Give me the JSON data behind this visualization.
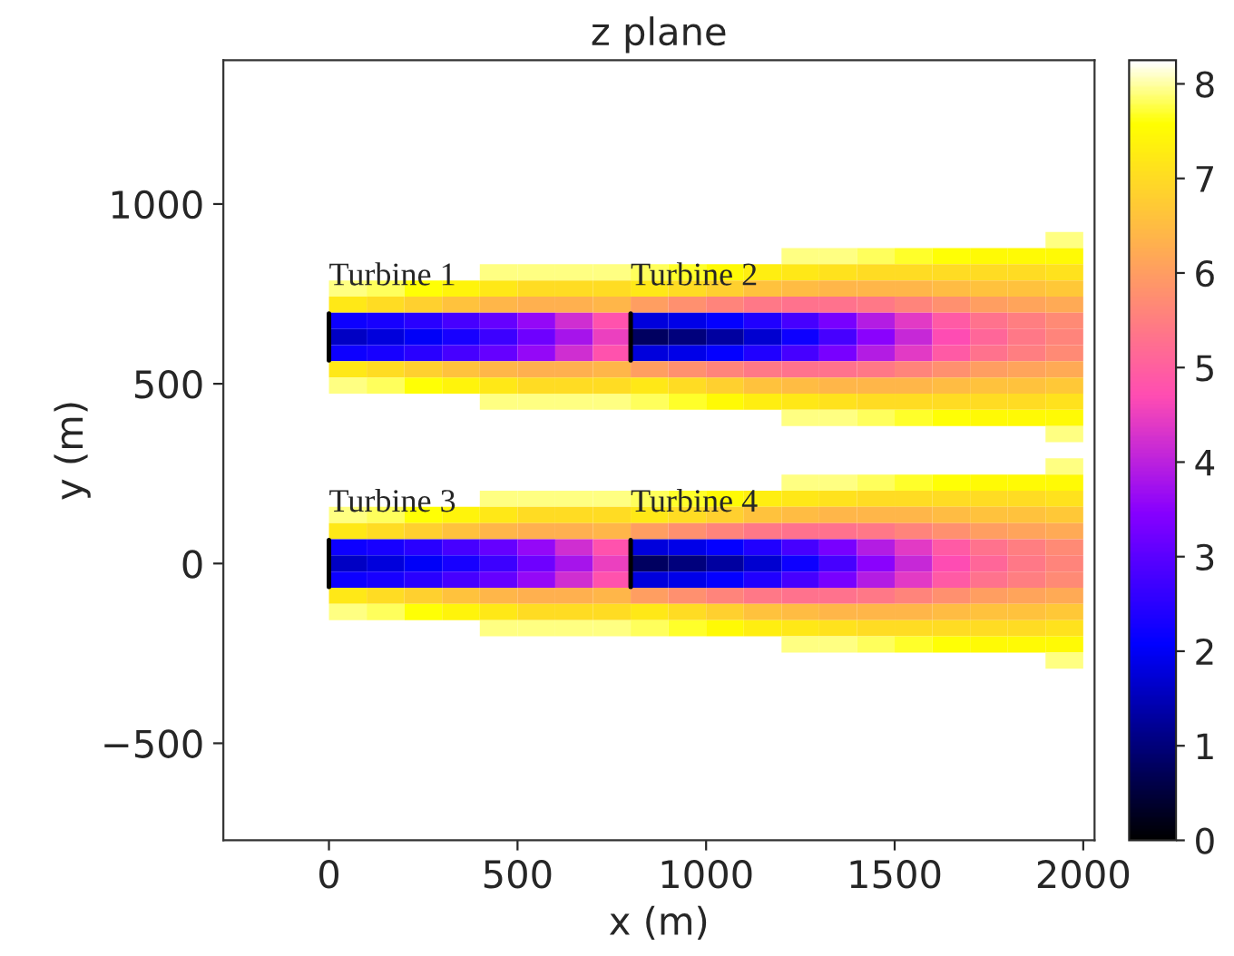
{
  "chart_data": {
    "type": "heatmap",
    "title": "z plane",
    "xlabel": "x (m)",
    "ylabel": "y (m)",
    "x": [
      50,
      150,
      250,
      350,
      450,
      550,
      650,
      750,
      850,
      950,
      1050,
      1150,
      1250,
      1350,
      1450,
      1550,
      1650,
      1750,
      1850,
      1950
    ],
    "y": [
      900,
      855,
      810,
      765,
      720,
      675,
      630,
      585,
      540,
      495,
      450,
      405,
      360,
      270,
      225,
      180,
      135,
      90,
      45,
      0,
      -45,
      -90,
      -135,
      -180,
      -225,
      -270
    ],
    "cells": [
      [
        null,
        null,
        null,
        null,
        null,
        null,
        null,
        null,
        null,
        null,
        null,
        null,
        null,
        null,
        null,
        null,
        null,
        null,
        null,
        7.9
      ],
      [
        null,
        null,
        null,
        null,
        null,
        null,
        null,
        null,
        null,
        null,
        null,
        null,
        7.9,
        7.9,
        7.8,
        7.7,
        7.6,
        7.5,
        7.5,
        7.5
      ],
      [
        null,
        null,
        null,
        null,
        7.9,
        7.9,
        7.9,
        7.9,
        7.8,
        7.7,
        7.5,
        7.3,
        7.2,
        7.1,
        7.0,
        7.0,
        7.0,
        7.0,
        7.0,
        7.1
      ],
      [
        7.9,
        7.8,
        7.6,
        7.4,
        7.2,
        7.0,
        7.0,
        7.0,
        7.2,
        7.0,
        6.8,
        6.6,
        6.5,
        6.4,
        6.4,
        6.4,
        6.5,
        6.6,
        6.6,
        6.7
      ],
      [
        7.2,
        7.0,
        6.8,
        6.6,
        6.4,
        6.3,
        6.3,
        6.4,
        6.0,
        5.8,
        5.6,
        5.4,
        5.3,
        5.3,
        5.4,
        5.6,
        5.8,
        6.0,
        6.1,
        6.2
      ],
      [
        2.2,
        2.3,
        2.5,
        2.8,
        3.1,
        3.6,
        4.2,
        4.8,
        1.8,
        1.9,
        2.1,
        2.4,
        2.8,
        3.3,
        3.9,
        4.4,
        4.9,
        5.3,
        5.5,
        5.7
      ],
      [
        1.6,
        1.8,
        2.0,
        2.3,
        2.7,
        3.2,
        3.8,
        4.5,
        0.8,
        1.0,
        1.3,
        1.7,
        2.2,
        2.8,
        3.5,
        4.1,
        4.7,
        5.1,
        5.4,
        5.6
      ],
      [
        2.2,
        2.3,
        2.5,
        2.8,
        3.1,
        3.6,
        4.2,
        4.8,
        1.8,
        1.9,
        2.1,
        2.4,
        2.8,
        3.3,
        3.9,
        4.4,
        4.9,
        5.3,
        5.5,
        5.7
      ],
      [
        7.2,
        7.0,
        6.8,
        6.6,
        6.4,
        6.3,
        6.3,
        6.4,
        6.0,
        5.8,
        5.6,
        5.4,
        5.3,
        5.3,
        5.4,
        5.6,
        5.8,
        6.0,
        6.1,
        6.2
      ],
      [
        7.9,
        7.8,
        7.6,
        7.4,
        7.2,
        7.0,
        7.0,
        7.0,
        7.2,
        7.0,
        6.8,
        6.6,
        6.5,
        6.4,
        6.4,
        6.4,
        6.5,
        6.6,
        6.6,
        6.7
      ],
      [
        null,
        null,
        null,
        null,
        7.9,
        7.9,
        7.9,
        7.9,
        7.8,
        7.7,
        7.5,
        7.3,
        7.2,
        7.1,
        7.0,
        7.0,
        7.0,
        7.0,
        7.0,
        7.1
      ],
      [
        null,
        null,
        null,
        null,
        null,
        null,
        null,
        null,
        null,
        null,
        null,
        null,
        7.9,
        7.9,
        7.8,
        7.7,
        7.6,
        7.5,
        7.5,
        7.5
      ],
      [
        null,
        null,
        null,
        null,
        null,
        null,
        null,
        null,
        null,
        null,
        null,
        null,
        null,
        null,
        null,
        null,
        null,
        null,
        null,
        7.9
      ],
      [
        null,
        null,
        null,
        null,
        null,
        null,
        null,
        null,
        null,
        null,
        null,
        null,
        null,
        null,
        null,
        null,
        null,
        null,
        null,
        7.9
      ],
      [
        null,
        null,
        null,
        null,
        null,
        null,
        null,
        null,
        null,
        null,
        null,
        null,
        7.9,
        7.9,
        7.8,
        7.7,
        7.6,
        7.5,
        7.5,
        7.5
      ],
      [
        null,
        null,
        null,
        null,
        7.9,
        7.9,
        7.9,
        7.9,
        7.8,
        7.7,
        7.5,
        7.3,
        7.2,
        7.1,
        7.0,
        7.0,
        7.0,
        7.0,
        7.0,
        7.1
      ],
      [
        7.9,
        7.8,
        7.6,
        7.4,
        7.2,
        7.0,
        7.0,
        7.0,
        7.2,
        7.0,
        6.8,
        6.6,
        6.5,
        6.4,
        6.4,
        6.4,
        6.5,
        6.6,
        6.6,
        6.7
      ],
      [
        7.2,
        7.0,
        6.8,
        6.6,
        6.4,
        6.3,
        6.3,
        6.4,
        6.0,
        5.8,
        5.6,
        5.4,
        5.3,
        5.3,
        5.4,
        5.6,
        5.8,
        6.0,
        6.1,
        6.2
      ],
      [
        2.2,
        2.3,
        2.5,
        2.8,
        3.1,
        3.6,
        4.2,
        4.8,
        1.8,
        1.9,
        2.1,
        2.4,
        2.8,
        3.3,
        3.9,
        4.4,
        4.9,
        5.3,
        5.5,
        5.7
      ],
      [
        1.6,
        1.8,
        2.0,
        2.3,
        2.7,
        3.2,
        3.8,
        4.5,
        0.8,
        1.0,
        1.3,
        1.7,
        2.2,
        2.8,
        3.5,
        4.1,
        4.7,
        5.1,
        5.4,
        5.6
      ],
      [
        2.2,
        2.3,
        2.5,
        2.8,
        3.1,
        3.6,
        4.2,
        4.8,
        1.8,
        1.9,
        2.1,
        2.4,
        2.8,
        3.3,
        3.9,
        4.4,
        4.9,
        5.3,
        5.5,
        5.7
      ],
      [
        7.2,
        7.0,
        6.8,
        6.6,
        6.4,
        6.3,
        6.3,
        6.4,
        6.0,
        5.8,
        5.6,
        5.4,
        5.3,
        5.3,
        5.4,
        5.6,
        5.8,
        6.0,
        6.1,
        6.2
      ],
      [
        7.9,
        7.8,
        7.6,
        7.4,
        7.2,
        7.0,
        7.0,
        7.0,
        7.2,
        7.0,
        6.8,
        6.6,
        6.5,
        6.4,
        6.4,
        6.4,
        6.5,
        6.6,
        6.6,
        6.7
      ],
      [
        null,
        null,
        null,
        null,
        7.9,
        7.9,
        7.9,
        7.9,
        7.8,
        7.7,
        7.5,
        7.3,
        7.2,
        7.1,
        7.0,
        7.0,
        7.0,
        7.0,
        7.0,
        7.1
      ],
      [
        null,
        null,
        null,
        null,
        null,
        null,
        null,
        null,
        null,
        null,
        null,
        null,
        7.9,
        7.9,
        7.8,
        7.7,
        7.6,
        7.5,
        7.5,
        7.5
      ],
      [
        null,
        null,
        null,
        null,
        null,
        null,
        null,
        null,
        null,
        null,
        null,
        null,
        null,
        null,
        null,
        null,
        null,
        null,
        null,
        7.9
      ]
    ],
    "xlim": [
      -280,
      2030
    ],
    "ylim": [
      -770,
      1400
    ],
    "xticks": [
      0,
      500,
      1000,
      1500,
      2000
    ],
    "yticks": [
      {
        "value": -500,
        "label": "−500"
      },
      0,
      500,
      1000
    ],
    "clim": [
      0,
      8.25
    ],
    "cticks": [
      0,
      1,
      2,
      3,
      4,
      5,
      6,
      7,
      8
    ],
    "grid": false,
    "annotations": [
      "Turbine 1",
      "Turbine 2",
      "Turbine 3",
      "Turbine 4"
    ]
  }
}
